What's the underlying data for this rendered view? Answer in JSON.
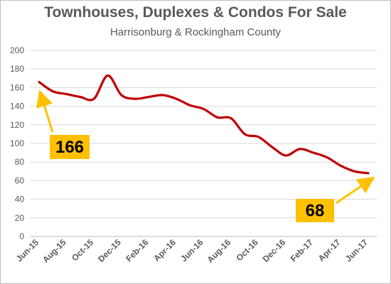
{
  "chart_data": {
    "type": "line",
    "title": "Townhouses, Duplexes & Condos For Sale",
    "subtitle": "Harrisonburg & Rockingham County",
    "xlabel": "",
    "ylabel": "",
    "ylim": [
      0,
      200
    ],
    "yticks": [
      0,
      20,
      40,
      60,
      80,
      100,
      120,
      140,
      160,
      180,
      200
    ],
    "grid": true,
    "legend": "none",
    "x": [
      "Jun-15",
      "Jul-15",
      "Aug-15",
      "Sep-15",
      "Oct-15",
      "Nov-15",
      "Dec-15",
      "Jan-16",
      "Feb-16",
      "Mar-16",
      "Apr-16",
      "May-16",
      "Jun-16",
      "Jul-16",
      "Aug-16",
      "Sep-16",
      "Oct-16",
      "Nov-16",
      "Dec-16",
      "Jan-17",
      "Feb-17",
      "Mar-17",
      "Apr-17",
      "May-17",
      "Jun-17"
    ],
    "xtick_labels": [
      "Jun-15",
      "Aug-15",
      "Oct-15",
      "Dec-15",
      "Feb-16",
      "Apr-16",
      "Jun-16",
      "Aug-16",
      "Oct-16",
      "Dec-16",
      "Feb-17",
      "Apr-17",
      "Jun-17"
    ],
    "series": [
      {
        "color": "#c00000",
        "values": [
          166,
          156,
          153,
          150,
          148,
          173,
          152,
          148,
          150,
          152,
          148,
          141,
          137,
          128,
          127,
          110,
          107,
          96,
          87,
          94,
          90,
          85,
          76,
          70,
          68
        ]
      }
    ],
    "annotations": [
      {
        "label": "166",
        "target_index": 0,
        "box_color": "#ffc000",
        "arrow_color": "#ffc000"
      },
      {
        "label": "68",
        "target_index": 24,
        "box_color": "#ffc000",
        "arrow_color": "#ffc000"
      }
    ]
  }
}
